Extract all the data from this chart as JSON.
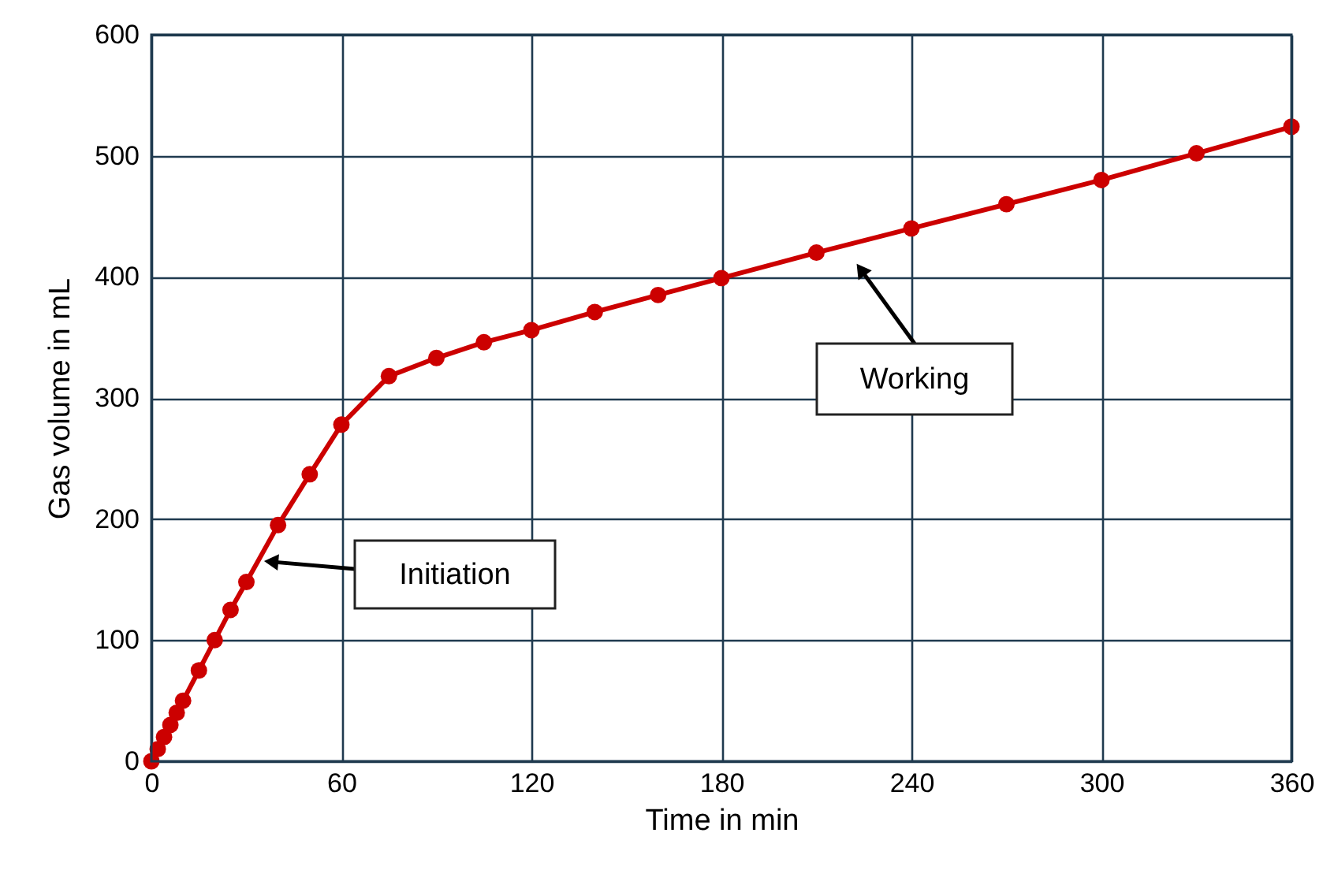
{
  "chart_data": {
    "type": "line",
    "xlabel": "Time in min",
    "ylabel": "Gas volume in mL",
    "x": [
      0,
      2,
      4,
      6,
      8,
      10,
      15,
      20,
      25,
      30,
      40,
      50,
      60,
      75,
      90,
      105,
      120,
      140,
      160,
      180,
      210,
      240,
      270,
      300,
      330,
      360
    ],
    "series": [
      {
        "color": "#cc0000",
        "values": [
          0,
          10,
          20,
          30,
          40,
          50,
          75,
          100,
          125,
          148,
          195,
          237,
          278,
          318,
          333,
          346,
          356,
          371,
          385,
          399,
          420,
          440,
          460,
          480,
          502,
          524
        ]
      }
    ],
    "xlim": [
      0,
      360
    ],
    "xticks": [
      0,
      60,
      120,
      180,
      240,
      300,
      360
    ],
    "ylim": [
      0,
      600
    ],
    "yticks": [
      0,
      100,
      200,
      300,
      400,
      500,
      600
    ],
    "grid": true,
    "marker": "circle",
    "line_style": "solid",
    "annotations": [
      "Initiation",
      "Working"
    ]
  }
}
